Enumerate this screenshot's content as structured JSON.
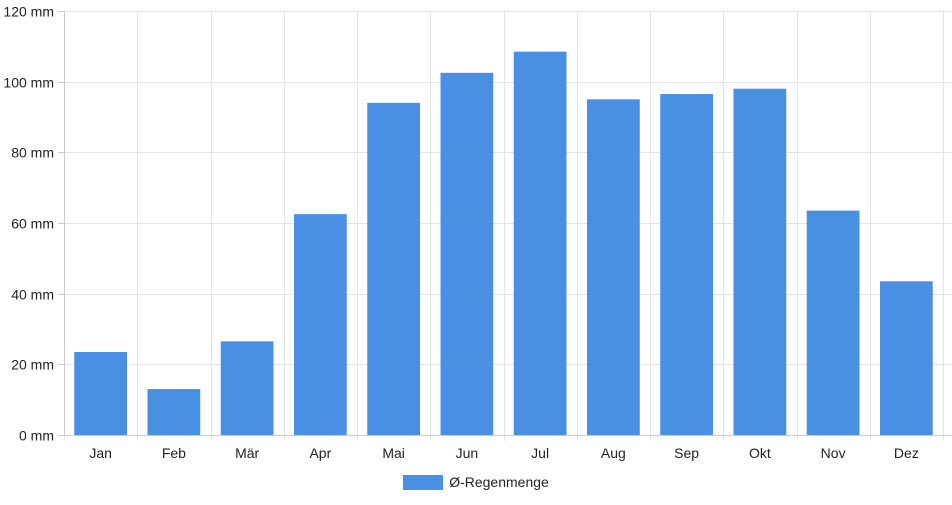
{
  "chart_data": {
    "type": "bar",
    "categories": [
      "Jan",
      "Feb",
      "Mär",
      "Apr",
      "Mai",
      "Jun",
      "Jul",
      "Aug",
      "Sep",
      "Okt",
      "Nov",
      "Dez"
    ],
    "series": [
      {
        "name": "Ø-Regenmenge",
        "values": [
          23.5,
          13,
          26.5,
          62.5,
          94,
          102.5,
          108.5,
          95,
          96.5,
          98,
          63.5,
          43.5
        ],
        "color": "#4a90e2"
      }
    ],
    "ylim": [
      0,
      120
    ],
    "yticks": [
      0,
      20,
      40,
      60,
      80,
      100,
      120
    ],
    "ytick_labels": [
      "0 mm",
      "20 mm",
      "40 mm",
      "60 mm",
      "80 mm",
      "100 mm",
      "120 mm"
    ],
    "grid": true,
    "legend_position": "bottom-center"
  }
}
